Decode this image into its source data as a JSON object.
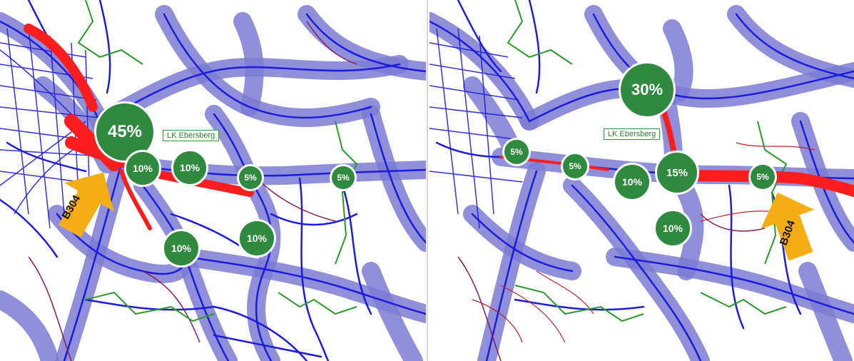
{
  "colors": {
    "corridor": "#7b7bd4",
    "road": "#1c1ce0",
    "hotspot": "#ff1e1e",
    "minor_road": "#8b1a5a",
    "boundary": "#2a9a2a",
    "bubble": "#2f8a3f",
    "arrow": "#f5ad14"
  },
  "left_map": {
    "region_label": "LK Ebersberg",
    "arrow_label": "B304",
    "bubbles": [
      {
        "label": "45%"
      },
      {
        "label": "10%"
      },
      {
        "label": "10%"
      },
      {
        "label": "5%"
      },
      {
        "label": "5%"
      },
      {
        "label": "10%"
      },
      {
        "label": "10%"
      }
    ]
  },
  "right_map": {
    "region_label": "LK Ebersberg",
    "arrow_label": "B304",
    "bubbles": [
      {
        "label": "30%"
      },
      {
        "label": "5%"
      },
      {
        "label": "5%"
      },
      {
        "label": "10%"
      },
      {
        "label": "15%"
      },
      {
        "label": "5%"
      },
      {
        "label": "10%"
      }
    ]
  }
}
